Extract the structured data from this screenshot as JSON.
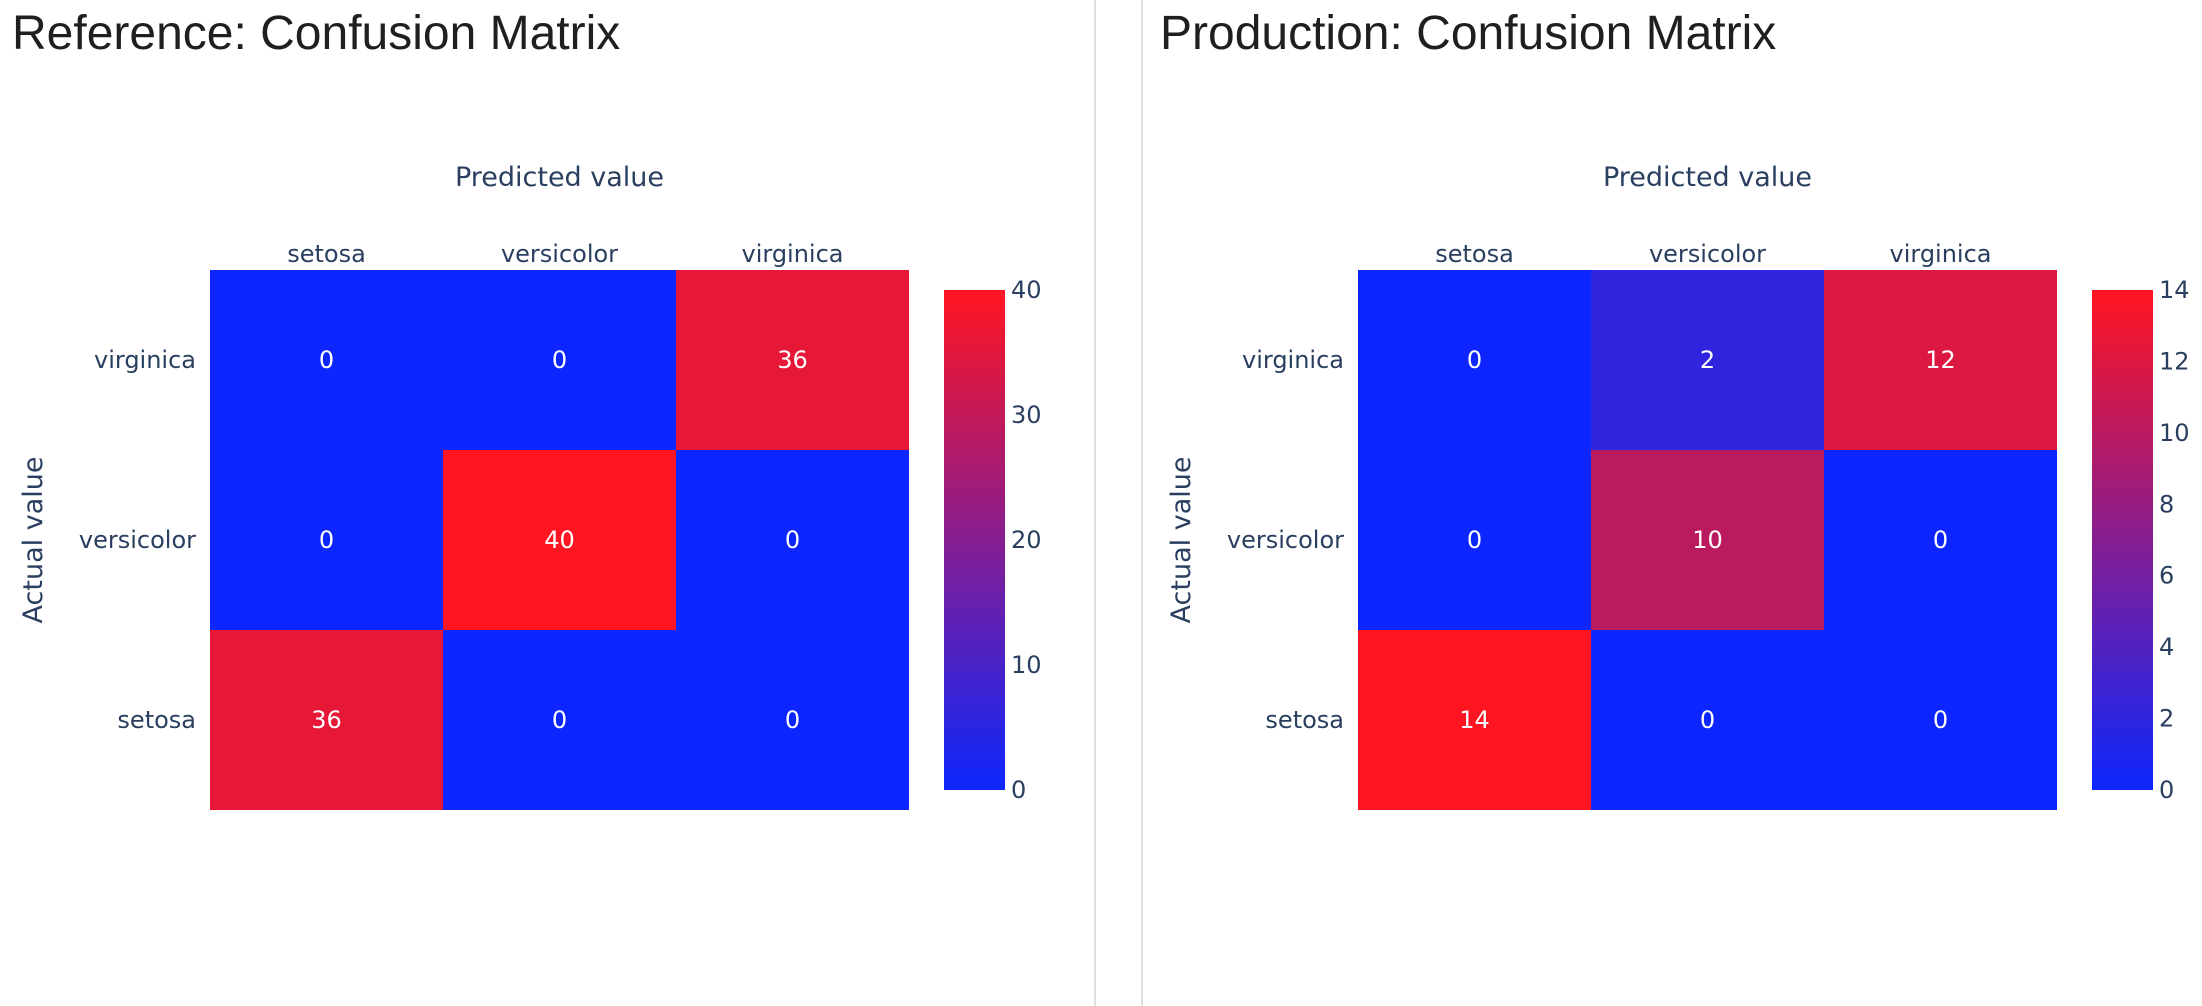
{
  "charts": [
    {
      "title": "Reference: Confusion Matrix",
      "chart_data": {
        "type": "heatmap",
        "title": "Reference: Confusion Matrix",
        "xlabel": "Predicted value",
        "ylabel": "Actual value",
        "x_categories": [
          "setosa",
          "versicolor",
          "virginica"
        ],
        "y_categories": [
          "virginica",
          "versicolor",
          "setosa"
        ],
        "z": [
          [
            0,
            0,
            36
          ],
          [
            0,
            40,
            0
          ],
          [
            36,
            0,
            0
          ]
        ],
        "zmin": 0,
        "zmax": 40,
        "colorbar_ticks": [
          0,
          10,
          20,
          30,
          40
        ],
        "colorscale": [
          "#0d26ff",
          "#ff1521"
        ]
      }
    },
    {
      "title": "Production: Confusion Matrix",
      "chart_data": {
        "type": "heatmap",
        "title": "Production: Confusion Matrix",
        "xlabel": "Predicted value",
        "ylabel": "Actual value",
        "x_categories": [
          "setosa",
          "versicolor",
          "virginica"
        ],
        "y_categories": [
          "virginica",
          "versicolor",
          "setosa"
        ],
        "z": [
          [
            0,
            2,
            12
          ],
          [
            0,
            10,
            0
          ],
          [
            14,
            0,
            0
          ]
        ],
        "zmin": 0,
        "zmax": 14,
        "colorbar_ticks": [
          0,
          2,
          4,
          6,
          8,
          10,
          12,
          14
        ],
        "colorscale": [
          "#0d26ff",
          "#ff1521"
        ]
      }
    }
  ]
}
